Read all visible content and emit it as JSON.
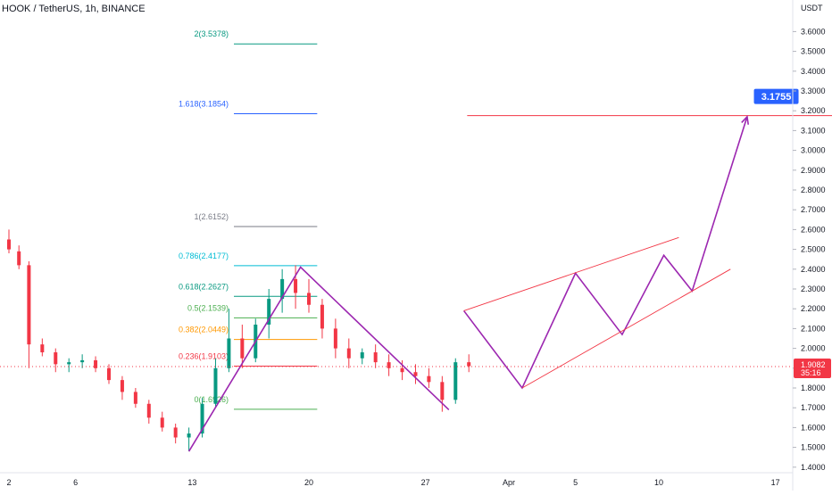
{
  "header": {
    "symbol": "HOOK / TetherUS, 1h, BINANCE"
  },
  "chart_data": {
    "type": "candlestick",
    "price_axis_unit": "USDT",
    "ylim": [
      1.32,
      3.68
    ],
    "y_ticks": [
      1.4,
      1.5,
      1.6,
      1.7,
      1.8,
      1.9,
      2.0,
      2.1,
      2.2,
      2.3,
      2.4,
      2.5,
      2.6,
      2.7,
      2.8,
      2.9,
      3.0,
      3.1,
      3.2,
      3.3,
      3.4,
      3.5,
      3.6
    ],
    "y_tick_labels": [
      "1.4000",
      "1.5000",
      "1.6000",
      "1.7000",
      "1.8000",
      "1.9000",
      "2.0000",
      "2.1000",
      "2.2000",
      "2.3000",
      "2.4000",
      "2.5000",
      "2.6000",
      "2.7000",
      "2.8000",
      "2.9000",
      "3.0000",
      "3.1000",
      "3.2000",
      "3.3000",
      "3.4000",
      "3.5000",
      "3.6000"
    ],
    "x_day_range": [
      2,
      47
    ],
    "x_ticks": [
      {
        "day": 2,
        "label": "2"
      },
      {
        "day": 6,
        "label": "6"
      },
      {
        "day": 13,
        "label": "13"
      },
      {
        "day": 20,
        "label": "20"
      },
      {
        "day": 27,
        "label": "27"
      },
      {
        "day": 32,
        "label": "Apr"
      },
      {
        "day": 36,
        "label": "5"
      },
      {
        "day": 41,
        "label": "10"
      },
      {
        "day": 48,
        "label": "17"
      }
    ],
    "current_price": {
      "value": 1.9082,
      "label": "1.9082",
      "countdown": "35:16",
      "color": "#f23645"
    },
    "candles_ohlc": [
      [
        2.0,
        2.55,
        2.6,
        2.48,
        2.5
      ],
      [
        2.6,
        2.49,
        2.52,
        2.4,
        2.42
      ],
      [
        3.2,
        2.42,
        2.44,
        1.9,
        2.02
      ],
      [
        4.0,
        2.02,
        2.05,
        1.96,
        1.98
      ],
      [
        4.8,
        1.98,
        2.0,
        1.88,
        1.92
      ],
      [
        5.6,
        1.92,
        1.95,
        1.88,
        1.93
      ],
      [
        6.4,
        1.93,
        1.97,
        1.9,
        1.94
      ],
      [
        7.2,
        1.94,
        1.96,
        1.88,
        1.9
      ],
      [
        8.0,
        1.9,
        1.92,
        1.82,
        1.84
      ],
      [
        8.8,
        1.84,
        1.86,
        1.74,
        1.78
      ],
      [
        9.6,
        1.78,
        1.8,
        1.7,
        1.72
      ],
      [
        10.4,
        1.72,
        1.74,
        1.62,
        1.65
      ],
      [
        11.2,
        1.65,
        1.68,
        1.58,
        1.6
      ],
      [
        12.0,
        1.6,
        1.62,
        1.52,
        1.55
      ],
      [
        12.8,
        1.55,
        1.6,
        1.48,
        1.57
      ],
      [
        13.6,
        1.57,
        1.75,
        1.55,
        1.72
      ],
      [
        14.4,
        1.72,
        1.95,
        1.7,
        1.9
      ],
      [
        15.2,
        1.9,
        2.2,
        1.88,
        2.05
      ],
      [
        16.0,
        2.05,
        2.12,
        1.9,
        1.95
      ],
      [
        16.8,
        1.95,
        2.15,
        1.93,
        2.12
      ],
      [
        17.6,
        2.12,
        2.3,
        2.05,
        2.25
      ],
      [
        18.4,
        2.25,
        2.4,
        2.18,
        2.35
      ],
      [
        19.2,
        2.35,
        2.42,
        2.2,
        2.28
      ],
      [
        20.0,
        2.28,
        2.35,
        2.18,
        2.22
      ],
      [
        20.8,
        2.22,
        2.25,
        2.05,
        2.1
      ],
      [
        21.6,
        2.1,
        2.15,
        1.95,
        2.0
      ],
      [
        22.4,
        2.0,
        2.05,
        1.9,
        1.95
      ],
      [
        23.2,
        1.95,
        2.0,
        1.92,
        1.98
      ],
      [
        24.0,
        1.98,
        2.02,
        1.9,
        1.93
      ],
      [
        24.8,
        1.93,
        1.97,
        1.86,
        1.9
      ],
      [
        25.6,
        1.9,
        1.94,
        1.84,
        1.88
      ],
      [
        26.4,
        1.88,
        1.92,
        1.82,
        1.86
      ],
      [
        27.2,
        1.86,
        1.9,
        1.8,
        1.83
      ],
      [
        28.0,
        1.83,
        1.86,
        1.68,
        1.74
      ],
      [
        28.8,
        1.74,
        1.95,
        1.72,
        1.93
      ],
      [
        29.6,
        1.93,
        1.97,
        1.88,
        1.91
      ]
    ],
    "fibonacci_levels": [
      {
        "label": "0(1.6926)",
        "value": 1.6926,
        "color": "#4caf50"
      },
      {
        "label": "0.236(1.9103)",
        "value": 1.9103,
        "color": "#f23645"
      },
      {
        "label": "0.382(2.0449)",
        "value": 2.0449,
        "color": "#ff9800"
      },
      {
        "label": "0.5(2.1539)",
        "value": 2.1539,
        "color": "#4caf50"
      },
      {
        "label": "0.618(2.2627)",
        "value": 2.2627,
        "color": "#089981"
      },
      {
        "label": "0.786(2.4177)",
        "value": 2.4177,
        "color": "#00bcd4"
      },
      {
        "label": "1(2.6152)",
        "value": 2.6152,
        "color": "#787b86"
      },
      {
        "label": "1.618(3.1854)",
        "value": 3.1854,
        "color": "#2962ff"
      },
      {
        "label": "2(3.5378)",
        "value": 3.5378,
        "color": "#089981"
      }
    ],
    "fib_x_range_days": [
      15.5,
      20.5
    ],
    "abcd_pattern": [
      {
        "day": 12.8,
        "price": 1.48
      },
      {
        "day": 19.5,
        "price": 2.41
      },
      {
        "day": 28.4,
        "price": 1.69
      }
    ],
    "projection_path": [
      {
        "day": 29.3,
        "price": 2.19
      },
      {
        "day": 32.8,
        "price": 1.8
      },
      {
        "day": 36.0,
        "price": 2.38
      },
      {
        "day": 38.8,
        "price": 2.07
      },
      {
        "day": 41.3,
        "price": 2.47
      },
      {
        "day": 43.0,
        "price": 2.29
      },
      {
        "day": 46.3,
        "price": 3.17
      }
    ],
    "channel_upper": [
      {
        "day": 29.3,
        "price": 2.19
      },
      {
        "day": 42.2,
        "price": 2.56
      }
    ],
    "channel_lower": [
      {
        "day": 32.8,
        "price": 1.8
      },
      {
        "day": 45.3,
        "price": 2.4
      }
    ],
    "target_line": {
      "value": 3.1755,
      "day_from": 29.5,
      "day_to": 55.5,
      "color": "#f23645"
    },
    "target_label": {
      "text": "3.1755",
      "day": 46.6,
      "color": "#2962ff"
    },
    "colors": {
      "up": "#089981",
      "down": "#f23645",
      "pattern": "#9c27b0",
      "channel": "#f23645"
    }
  }
}
